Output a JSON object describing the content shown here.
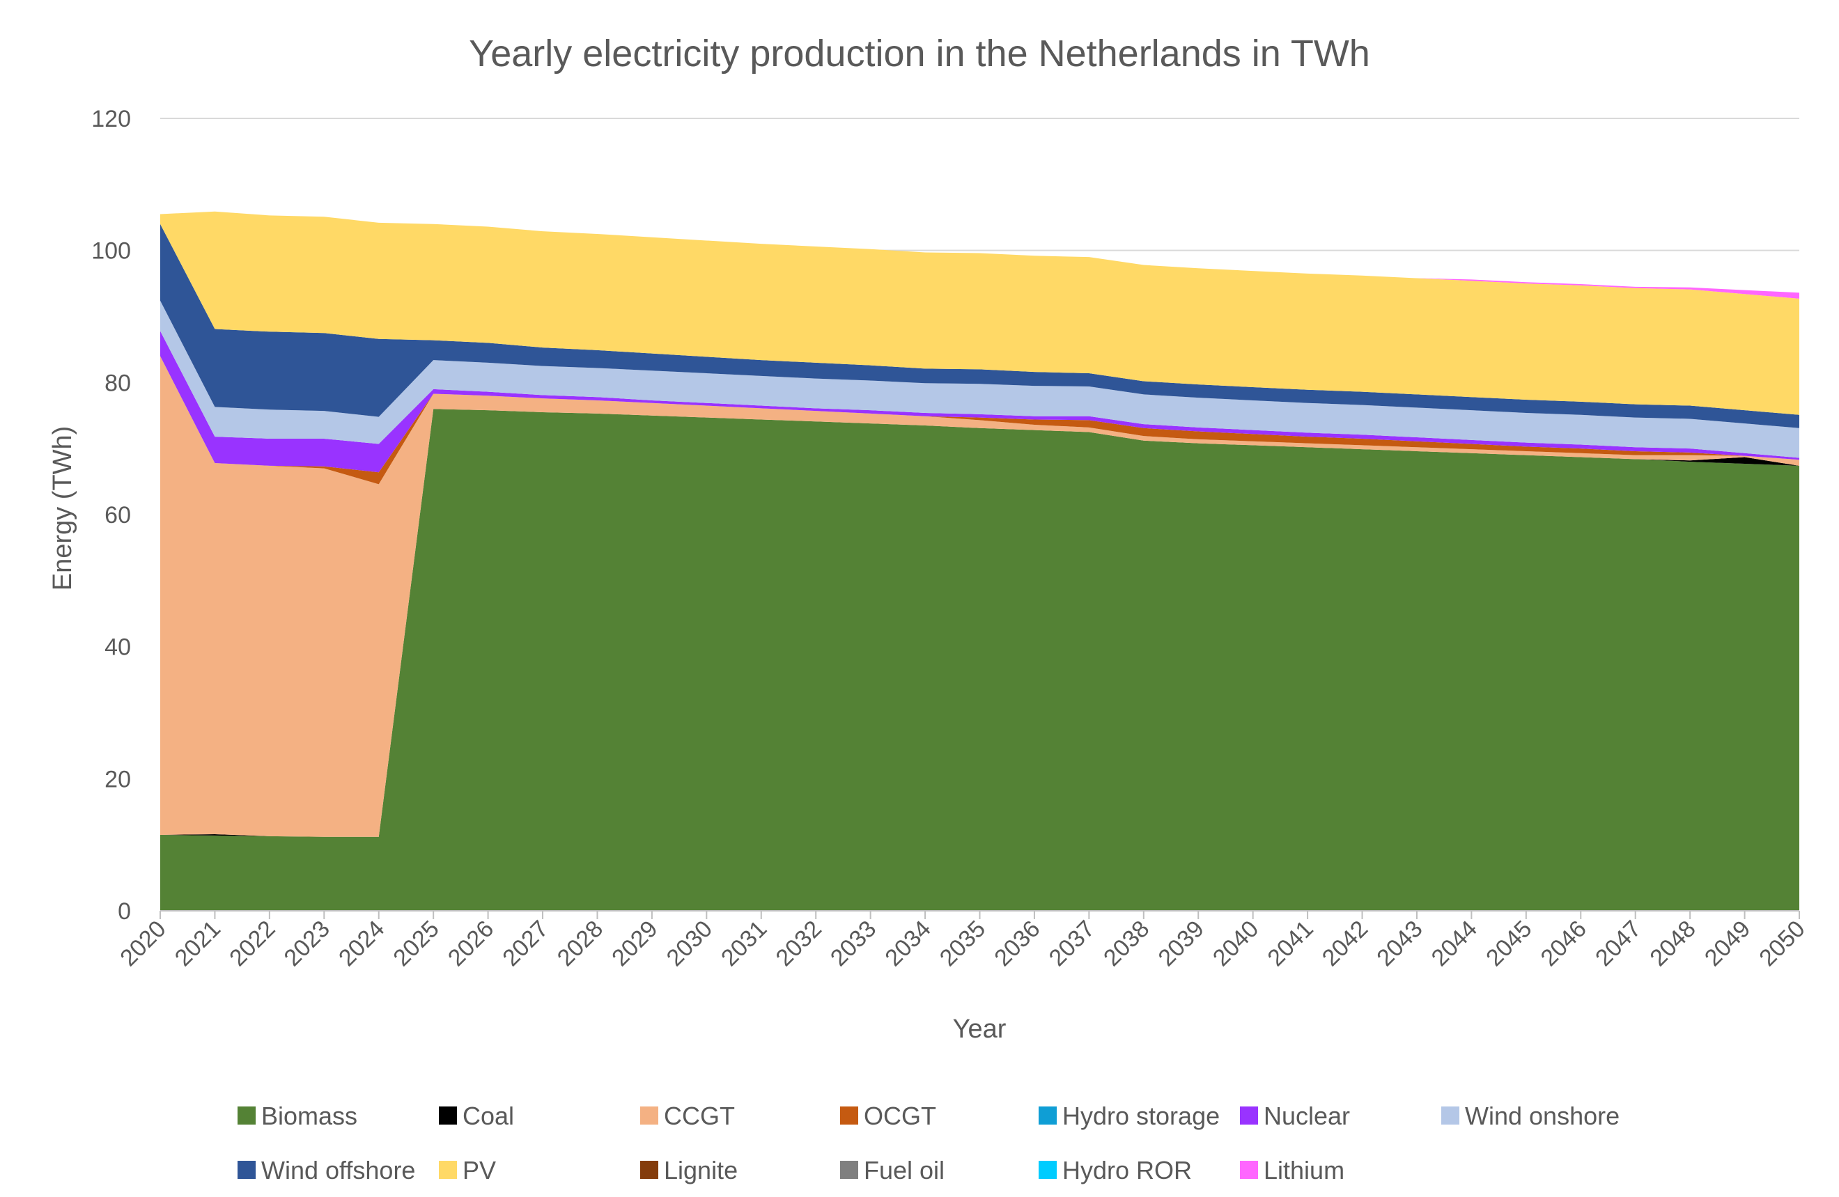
{
  "chart_data": {
    "type": "area",
    "stacked": true,
    "title": "Yearly electricity production in the Netherlands in TWh",
    "xlabel": "Year",
    "ylabel": "Energy (TWh)",
    "ylim": [
      0,
      120
    ],
    "yticks": [
      0,
      20,
      40,
      60,
      80,
      100,
      120
    ],
    "grid": true,
    "legend_position": "bottom",
    "x": [
      "2020",
      "2021",
      "2022",
      "2023",
      "2024",
      "2025",
      "2026",
      "2027",
      "2028",
      "2029",
      "2030",
      "2031",
      "2032",
      "2033",
      "2034",
      "2035",
      "2036",
      "2037",
      "2038",
      "2039",
      "2040",
      "2041",
      "2042",
      "2043",
      "2044",
      "2045",
      "2046",
      "2047",
      "2048",
      "2049",
      "2050"
    ],
    "series": [
      {
        "name": "Biomass",
        "color": "#548235",
        "values": [
          11.5,
          11.4,
          11.3,
          11.2,
          11.2,
          76.0,
          75.8,
          75.5,
          75.3,
          75.0,
          74.7,
          74.4,
          74.1,
          73.8,
          73.5,
          73.1,
          72.8,
          72.5,
          71.2,
          70.8,
          70.5,
          70.2,
          69.9,
          69.6,
          69.3,
          69.0,
          68.7,
          68.4,
          68.0,
          67.7,
          67.4
        ]
      },
      {
        "name": "Coal",
        "color": "#000000",
        "values": [
          0,
          0.2,
          0,
          0,
          0,
          0,
          0,
          0,
          0,
          0,
          0,
          0,
          0,
          0,
          0,
          0,
          0,
          0,
          0,
          0,
          0,
          0,
          0,
          0,
          0,
          0,
          0,
          0,
          0.2,
          1.0,
          0
        ]
      },
      {
        "name": "CCGT",
        "color": "#F4B183",
        "values": [
          72.5,
          56.2,
          56.1,
          55.8,
          53.4,
          2.3,
          2.2,
          2.1,
          2.0,
          1.9,
          1.8,
          1.7,
          1.6,
          1.5,
          1.4,
          1.2,
          0.8,
          0.7,
          0.7,
          0.6,
          0.6,
          0.6,
          0.6,
          0.6,
          0.6,
          0.6,
          0.6,
          0.6,
          0.8,
          0.2,
          0.9
        ]
      },
      {
        "name": "OCGT",
        "color": "#C55A11",
        "values": [
          0,
          0,
          0,
          0.3,
          1.8,
          0,
          0,
          0,
          0,
          0,
          0,
          0,
          0,
          0,
          0,
          0.4,
          0.8,
          1.1,
          1.2,
          1.2,
          1.1,
          1.0,
          1.0,
          0.9,
          0.8,
          0.7,
          0.7,
          0.6,
          0.4,
          0,
          0
        ]
      },
      {
        "name": "Hydro storage",
        "color": "#0F9ED5",
        "values": [
          0,
          0,
          0,
          0,
          0,
          0,
          0,
          0,
          0,
          0,
          0,
          0,
          0,
          0,
          0,
          0,
          0,
          0,
          0,
          0,
          0,
          0,
          0,
          0,
          0,
          0,
          0,
          0,
          0,
          0,
          0
        ]
      },
      {
        "name": "Nuclear",
        "color": "#9933FF",
        "values": [
          3.8,
          4.0,
          4.1,
          4.2,
          4.3,
          0.7,
          0.6,
          0.5,
          0.5,
          0.4,
          0.4,
          0.4,
          0.4,
          0.5,
          0.5,
          0.5,
          0.5,
          0.6,
          0.6,
          0.6,
          0.6,
          0.6,
          0.6,
          0.6,
          0.6,
          0.6,
          0.6,
          0.6,
          0.6,
          0.4,
          0.3
        ]
      },
      {
        "name": "Wind onshore",
        "color": "#B4C7E7",
        "values": [
          4.6,
          4.5,
          4.4,
          4.2,
          4.1,
          4.4,
          4.4,
          4.4,
          4.4,
          4.5,
          4.5,
          4.5,
          4.5,
          4.5,
          4.5,
          4.6,
          4.6,
          4.5,
          4.5,
          4.5,
          4.5,
          4.5,
          4.5,
          4.5,
          4.5,
          4.5,
          4.5,
          4.5,
          4.5,
          4.5,
          4.5
        ]
      },
      {
        "name": "Wind offshore",
        "color": "#2F5597",
        "values": [
          11.6,
          11.8,
          11.8,
          11.8,
          11.8,
          3.0,
          3.0,
          2.8,
          2.7,
          2.6,
          2.5,
          2.4,
          2.4,
          2.3,
          2.2,
          2.2,
          2.1,
          2.0,
          2.0,
          2.0,
          2.0,
          2.0,
          2.0,
          2.0,
          2.0,
          2.0,
          2.0,
          2.0,
          2.0,
          2.0,
          2.0
        ]
      },
      {
        "name": "PV",
        "color": "#FFD966",
        "values": [
          1.5,
          17.8,
          17.6,
          17.6,
          17.6,
          17.6,
          17.6,
          17.6,
          17.6,
          17.6,
          17.6,
          17.6,
          17.6,
          17.6,
          17.6,
          17.6,
          17.6,
          17.6,
          17.6,
          17.6,
          17.6,
          17.6,
          17.6,
          17.6,
          17.6,
          17.6,
          17.6,
          17.6,
          17.6,
          17.6,
          17.6
        ]
      },
      {
        "name": "Lignite",
        "color": "#843C0C",
        "values": [
          0,
          0,
          0,
          0,
          0,
          0,
          0,
          0,
          0,
          0,
          0,
          0,
          0,
          0,
          0,
          0,
          0,
          0,
          0,
          0,
          0,
          0,
          0,
          0,
          0,
          0,
          0,
          0,
          0,
          0,
          0
        ]
      },
      {
        "name": "Fuel oil",
        "color": "#7F7F7F",
        "values": [
          0,
          0,
          0,
          0,
          0,
          0,
          0,
          0,
          0,
          0,
          0,
          0,
          0,
          0,
          0,
          0,
          0,
          0,
          0,
          0,
          0,
          0,
          0,
          0,
          0,
          0,
          0,
          0,
          0,
          0,
          0
        ]
      },
      {
        "name": "Hydro ROR",
        "color": "#00CCFF",
        "values": [
          0,
          0,
          0,
          0,
          0,
          0,
          0,
          0,
          0,
          0,
          0,
          0,
          0,
          0,
          0,
          0,
          0,
          0,
          0,
          0,
          0,
          0,
          0,
          0,
          0,
          0,
          0,
          0,
          0,
          0,
          0
        ]
      },
      {
        "name": "Lithium",
        "color": "#FF66FF",
        "values": [
          0,
          0,
          0,
          0,
          0,
          0,
          0,
          0,
          0,
          0,
          0,
          0,
          0,
          0,
          0,
          0,
          0,
          0,
          0,
          0,
          0,
          0,
          0,
          0,
          0.2,
          0.2,
          0.2,
          0.2,
          0.3,
          0.6,
          0.9
        ]
      }
    ]
  }
}
